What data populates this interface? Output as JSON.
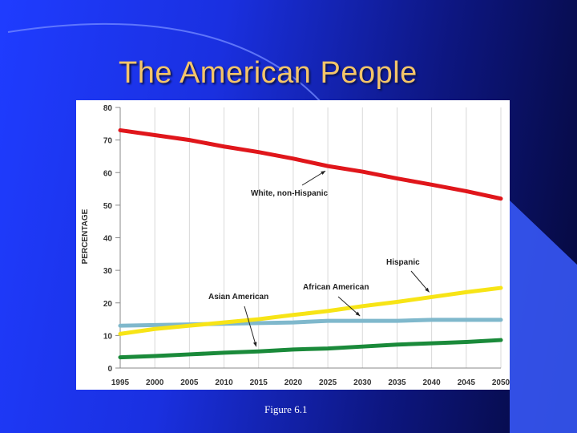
{
  "slide": {
    "title": "The American People",
    "caption": "Figure 6.1",
    "colors": {
      "title": "#f4c56a",
      "background": "#1f3cff"
    }
  },
  "chart_data": {
    "type": "line",
    "title": "",
    "xlabel": "",
    "ylabel": "PERCENTAGE",
    "x": [
      1995,
      2000,
      2005,
      2010,
      2015,
      2020,
      2025,
      2030,
      2035,
      2040,
      2045,
      2050
    ],
    "xticks": [
      "1995",
      "2000",
      "2005",
      "2010",
      "2015",
      "2020",
      "2025",
      "2030",
      "2035",
      "2040",
      "2045",
      "2050"
    ],
    "ylim": [
      0,
      80
    ],
    "yticks": [
      "0",
      "10",
      "20",
      "30",
      "40",
      "50",
      "60",
      "70",
      "80"
    ],
    "grid": true,
    "series": [
      {
        "name": "White, non-Hispanic",
        "color": "#e0161b",
        "values": [
          73,
          71.5,
          70,
          68,
          66.3,
          64.3,
          62,
          60.3,
          58.2,
          56.3,
          54.3,
          52
        ]
      },
      {
        "name": "Hispanic",
        "color": "#f7e416",
        "values": [
          10.5,
          12,
          13,
          14,
          15,
          16.3,
          17.5,
          19,
          20.3,
          21.8,
          23.3,
          24.6
        ]
      },
      {
        "name": "African American",
        "color": "#7fb8cc",
        "values": [
          13,
          13.2,
          13.4,
          13.6,
          13.8,
          14,
          14.5,
          14.5,
          14.5,
          14.8,
          14.8,
          14.8
        ]
      },
      {
        "name": "Asian American",
        "color": "#1a8a3a",
        "values": [
          3.3,
          3.7,
          4.2,
          4.7,
          5.1,
          5.7,
          6,
          6.6,
          7.2,
          7.6,
          8,
          8.6
        ]
      }
    ],
    "annotations": [
      {
        "text": "White, non-Hispanic",
        "series": "White, non-Hispanic"
      },
      {
        "text": "Hispanic",
        "series": "Hispanic"
      },
      {
        "text": "African American",
        "series": "African American"
      },
      {
        "text": "Asian American",
        "series": "Asian American"
      }
    ]
  }
}
